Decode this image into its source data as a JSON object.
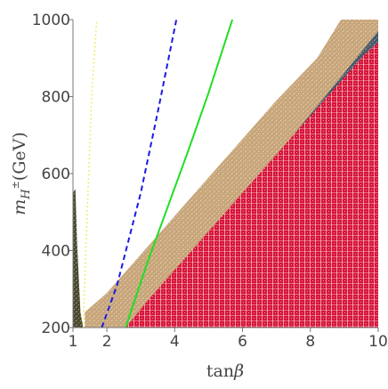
{
  "chart_data": {
    "type": "area",
    "xlabel": {
      "pre": "tan",
      "italic": "β"
    },
    "ylabel": {
      "italic": "m",
      "sub": "H",
      "sup": "±",
      "post": "(GeV)"
    },
    "xlim": [
      1,
      10
    ],
    "ylim": [
      200,
      1000
    ],
    "x_ticks": [
      1,
      2,
      4,
      6,
      8,
      10
    ],
    "y_ticks": [
      200,
      400,
      600,
      800,
      1000
    ],
    "regions": [
      {
        "color": "#c8a67a",
        "pattern": "speckled",
        "polygon": [
          [
            1.35,
            200
          ],
          [
            1.35,
            240
          ],
          [
            2.0,
            290
          ],
          [
            2.8,
            370
          ],
          [
            3.7,
            460
          ],
          [
            4.7,
            560
          ],
          [
            5.8,
            670
          ],
          [
            7.0,
            790
          ],
          [
            8.2,
            900
          ],
          [
            8.9,
            1000
          ],
          [
            10,
            1000
          ],
          [
            10,
            200
          ]
        ]
      },
      {
        "color": "#4a5a6a",
        "pattern": "speckled",
        "polygon": [
          [
            4.6,
            380
          ],
          [
            6.0,
            530
          ],
          [
            7.5,
            700
          ],
          [
            8.8,
            840
          ],
          [
            10,
            970
          ],
          [
            10,
            200
          ],
          [
            3.0,
            200
          ]
        ]
      },
      {
        "color": "#d8163a",
        "pattern": "hatched",
        "polygon": [
          [
            2.55,
            200
          ],
          [
            3.2,
            270
          ],
          [
            4.2,
            370
          ],
          [
            5.6,
            510
          ],
          [
            7.0,
            650
          ],
          [
            8.4,
            790
          ],
          [
            9.6,
            910
          ],
          [
            10,
            940
          ],
          [
            10,
            200
          ]
        ]
      },
      {
        "color": "#4a4a30",
        "pattern": "speckled",
        "polygon": [
          [
            1.0,
            200
          ],
          [
            1.0,
            550
          ],
          [
            1.07,
            560
          ],
          [
            1.12,
            420
          ],
          [
            1.22,
            240
          ],
          [
            1.3,
            200
          ]
        ]
      }
    ],
    "series": [
      {
        "style": "dotted",
        "color": "#f2e64a",
        "points": [
          [
            1.3,
            200
          ],
          [
            1.4,
            450
          ],
          [
            1.55,
            800
          ],
          [
            1.7,
            1000
          ]
        ]
      },
      {
        "style": "dashed",
        "color": "#1a1ae6",
        "points": [
          [
            1.85,
            200
          ],
          [
            2.3,
            310
          ],
          [
            3.0,
            550
          ],
          [
            3.5,
            760
          ],
          [
            4.05,
            1000
          ]
        ]
      },
      {
        "style": "solid",
        "color": "#22dd22",
        "points": [
          [
            2.55,
            200
          ],
          [
            3.2,
            370
          ],
          [
            4.4,
            660
          ],
          [
            5.0,
            810
          ],
          [
            5.7,
            1000
          ]
        ]
      }
    ]
  }
}
